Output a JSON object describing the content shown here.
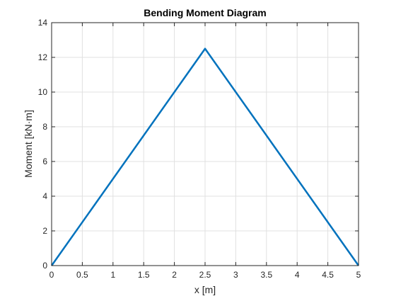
{
  "chart_data": {
    "type": "line",
    "title": "Bending Moment Diagram",
    "xlabel": "x [m]",
    "ylabel": "Moment [kN·m]",
    "xlim": [
      0,
      5
    ],
    "ylim": [
      0,
      14
    ],
    "xticks": [
      0,
      0.5,
      1,
      1.5,
      2,
      2.5,
      3,
      3.5,
      4,
      4.5,
      5
    ],
    "yticks": [
      0,
      2,
      4,
      6,
      8,
      10,
      12,
      14
    ],
    "xtick_labels": [
      "0",
      "0.5",
      "1",
      "1.5",
      "2",
      "2.5",
      "3",
      "3.5",
      "4",
      "4.5",
      "5"
    ],
    "ytick_labels": [
      "0",
      "2",
      "4",
      "6",
      "8",
      "10",
      "12",
      "14"
    ],
    "grid": true,
    "series": [
      {
        "color": "#0072BD",
        "x": [
          0,
          2.5,
          5
        ],
        "y": [
          0,
          12.5,
          0
        ]
      }
    ]
  }
}
